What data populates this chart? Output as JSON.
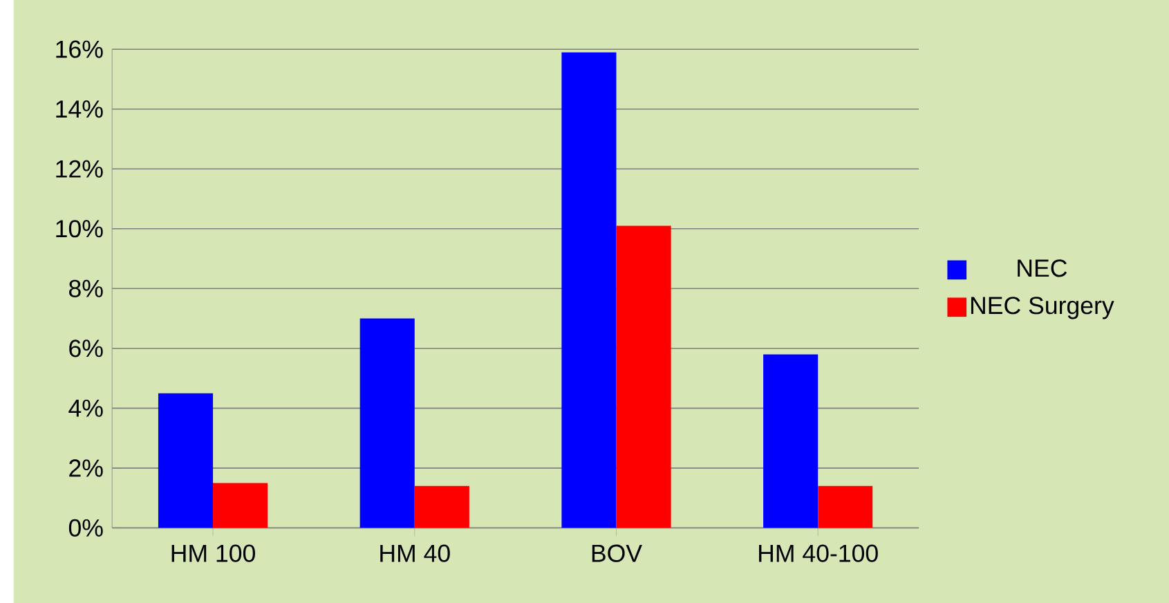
{
  "chart_data": {
    "type": "bar",
    "categories": [
      "HM 100",
      "HM 40",
      "BOV",
      "HM 40-100"
    ],
    "series": [
      {
        "name": "NEC",
        "color": "#0000ff",
        "values": [
          4.5,
          7,
          15.9,
          5.8
        ]
      },
      {
        "name": "NEC Surgery",
        "color": "#ff0000",
        "values": [
          1.5,
          1.4,
          10.1,
          1.4
        ]
      }
    ],
    "ylim": [
      0,
      16
    ],
    "yticks": [
      {
        "value": 0,
        "label": "0%"
      },
      {
        "value": 2,
        "label": "2%"
      },
      {
        "value": 4,
        "label": "4%"
      },
      {
        "value": 6,
        "label": "6%"
      },
      {
        "value": 8,
        "label": "8%"
      },
      {
        "value": 10,
        "label": "10%"
      },
      {
        "value": 12,
        "label": "12%"
      },
      {
        "value": 14,
        "label": "14%"
      },
      {
        "value": 16,
        "label": "16%"
      }
    ],
    "grid": "y",
    "legend": "right"
  }
}
